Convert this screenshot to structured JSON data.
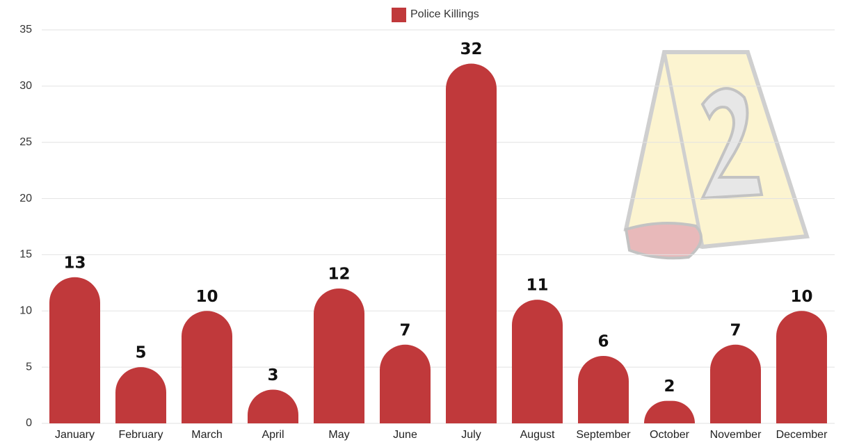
{
  "chart_data": {
    "type": "bar",
    "categories": [
      "January",
      "February",
      "March",
      "April",
      "May",
      "June",
      "July",
      "August",
      "September",
      "October",
      "November",
      "December"
    ],
    "series": [
      {
        "name": "Police Killings",
        "color": "#c0393b",
        "values": [
          13,
          5,
          10,
          3,
          12,
          7,
          32,
          11,
          6,
          2,
          7,
          10
        ]
      }
    ],
    "ylim": [
      0,
      35
    ],
    "yticks": [
      0,
      5,
      10,
      15,
      20,
      25,
      30,
      35
    ],
    "grid": true,
    "legend": "top"
  }
}
